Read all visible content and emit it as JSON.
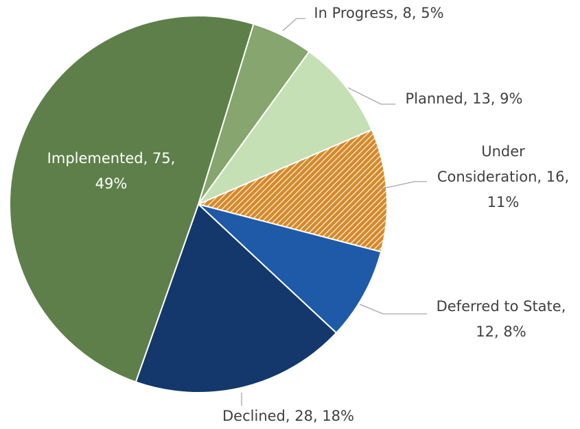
{
  "chart_data": {
    "type": "pie",
    "values": [
      8,
      13,
      16,
      12,
      28,
      75
    ],
    "value_labels": [
      "In Progress, 8, 5%",
      "Planned, 13, 9%",
      "Under\nConsideration, 16,\n11%",
      "Deferred to State,\n12, 8%",
      "Declined, 28, 18%",
      "Implemented, 75,\n49%"
    ],
    "colors": [
      "#87a56e",
      "#c5e0b4",
      "#d68a2a",
      "#1f5aa8",
      "#14386b",
      "#5f7f4a"
    ],
    "hatched": [
      false,
      false,
      true,
      false,
      false,
      false
    ]
  }
}
